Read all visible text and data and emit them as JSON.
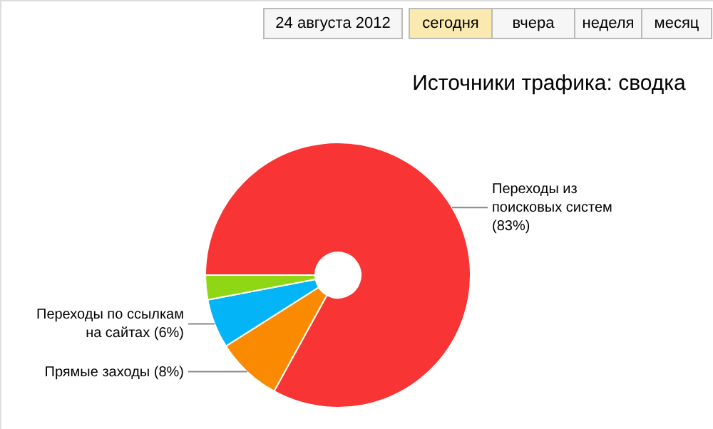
{
  "chart_data": {
    "type": "donut",
    "title": "Источники трафика: сводка",
    "categories": [
      "Переходы из поисковых систем",
      "Прямые заходы",
      "Переходы по ссылкам на сайтах",
      null
    ],
    "values": [
      83,
      8,
      6,
      3
    ],
    "value_labels": [
      "(83%)",
      "(8%)",
      "(6%)",
      null
    ],
    "colors": [
      "#f83434",
      "#fb8a03",
      "#03b4f6",
      "#8fd714"
    ],
    "annotations": [
      "24 августа 2012",
      "сегодня",
      "вчера",
      "неделя",
      "месяц"
    ]
  }
}
